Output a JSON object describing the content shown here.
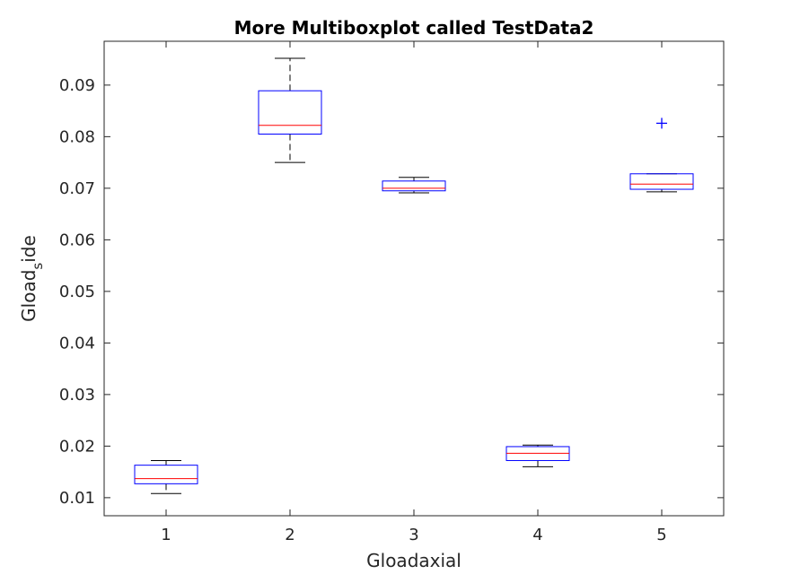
{
  "chart_data": {
    "type": "boxplot",
    "title": "More Multiboxplot called TestData2",
    "xlabel": "Gloadaxial",
    "ylabel_main": "Gload",
    "ylabel_sub": "s",
    "ylabel_tail": "ide",
    "ylim": [
      0.0065,
      0.0985
    ],
    "xlim": [
      0.5,
      5.5
    ],
    "yticks": [
      "0.01",
      "0.02",
      "0.03",
      "0.04",
      "0.05",
      "0.06",
      "0.07",
      "0.08",
      "0.09"
    ],
    "ytick_values": [
      0.01,
      0.02,
      0.03,
      0.04,
      0.05,
      0.06,
      0.07,
      0.08,
      0.09
    ],
    "categories": [
      "1",
      "2",
      "3",
      "4",
      "5"
    ],
    "grid": false,
    "colors": {
      "box": "#0000ff",
      "median": "#ff0000",
      "whisker": "#000000",
      "outlier": "#0000ff",
      "axes": "#262626"
    },
    "boxes": [
      {
        "category": "1",
        "whisker_low": 0.0108,
        "q1": 0.0127,
        "median": 0.0137,
        "q3": 0.0163,
        "whisker_high": 0.0172,
        "outliers": []
      },
      {
        "category": "2",
        "whisker_low": 0.075,
        "q1": 0.0805,
        "median": 0.0822,
        "q3": 0.0889,
        "whisker_high": 0.0952,
        "outliers": []
      },
      {
        "category": "3",
        "whisker_low": 0.0691,
        "q1": 0.0695,
        "median": 0.07,
        "q3": 0.0714,
        "whisker_high": 0.0721,
        "outliers": []
      },
      {
        "category": "4",
        "whisker_low": 0.016,
        "q1": 0.0172,
        "median": 0.0186,
        "q3": 0.0199,
        "whisker_high": 0.0202,
        "outliers": []
      },
      {
        "category": "5",
        "whisker_low": 0.0693,
        "q1": 0.0698,
        "median": 0.0708,
        "q3": 0.0728,
        "whisker_high": 0.0728,
        "outliers": [
          0.0826
        ]
      }
    ]
  }
}
